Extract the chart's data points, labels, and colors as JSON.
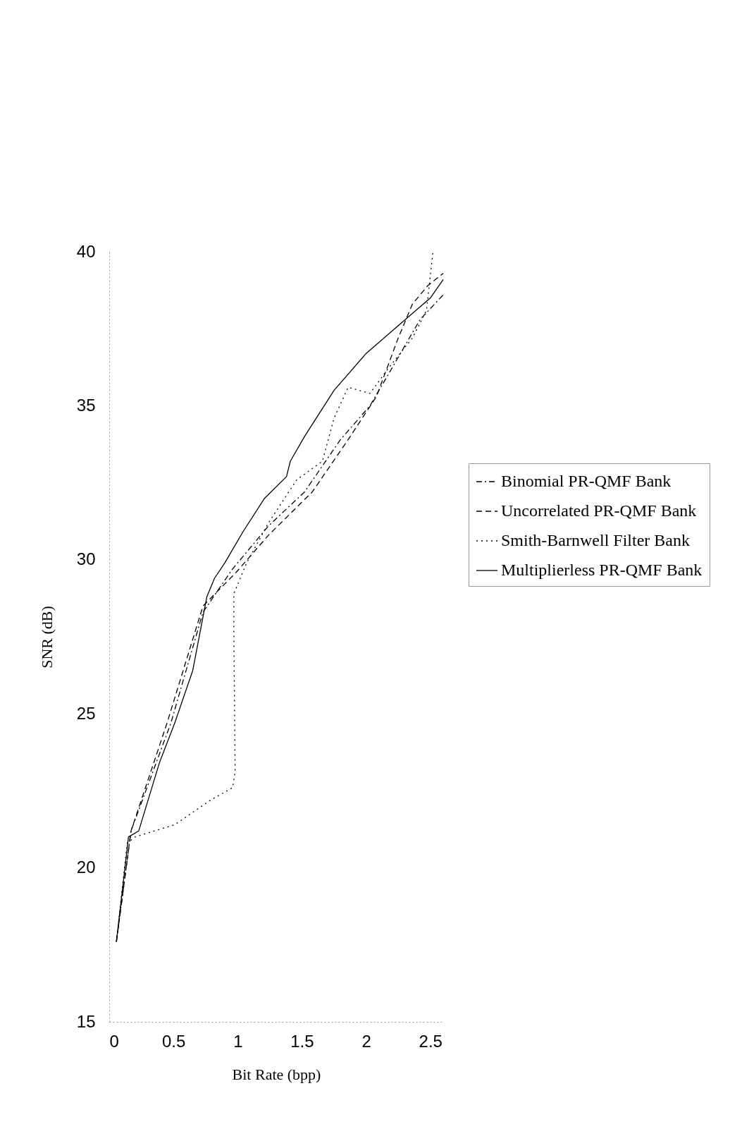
{
  "chart_data": {
    "type": "line",
    "xlabel": "Bit Rate (bpp)",
    "ylabel": "SNR (dB)",
    "xlim": [
      0,
      2.6
    ],
    "ylim": [
      15,
      40
    ],
    "xticks": [
      0,
      0.5,
      1,
      1.5,
      2,
      2.5
    ],
    "yticks": [
      15,
      20,
      25,
      30,
      35,
      40
    ],
    "grid": false,
    "legend": "right",
    "marker": "none",
    "series": [
      {
        "name": "Binomial PR-QMF Bank",
        "color": "#000000",
        "line_style": "dashdot",
        "x": [
          0.056,
          0.17,
          0.48,
          0.73,
          0.96,
          1.24,
          1.52,
          1.8,
          2.03,
          2.17,
          2.42,
          2.6
        ],
        "values": [
          17.6,
          21.2,
          24.7,
          28.3,
          29.7,
          31.1,
          32.2,
          33.9,
          35.0,
          36.0,
          37.8,
          38.6
        ]
      },
      {
        "name": "Uncorrelated PR-QMF Bank",
        "color": "#000000",
        "line_style": "dashed",
        "x": [
          0.056,
          0.17,
          0.45,
          0.73,
          0.99,
          1.24,
          1.58,
          1.86,
          2.08,
          2.25,
          2.36,
          2.48,
          2.6
        ],
        "values": [
          17.6,
          21.2,
          24.7,
          28.5,
          29.6,
          30.8,
          32.2,
          33.9,
          35.3,
          37.2,
          38.3,
          38.9,
          39.3
        ]
      },
      {
        "name": "Smith-Barnwell Filter Bank",
        "color": "#000000",
        "line_style": "dotted",
        "x": [
          0.056,
          0.14,
          0.2,
          0.51,
          0.79,
          0.96,
          0.98,
          0.97,
          0.97,
          1.07,
          1.24,
          1.46,
          1.66,
          1.75,
          1.86,
          2.03,
          2.17,
          2.36,
          2.47,
          2.52
        ],
        "values": [
          17.6,
          20.8,
          21.0,
          21.4,
          22.2,
          22.6,
          23.1,
          27.8,
          28.9,
          29.9,
          31.2,
          32.6,
          33.2,
          34.6,
          35.6,
          35.4,
          36.2,
          37.2,
          38.1,
          40.0
        ]
      },
      {
        "name": "Multiplierless PR-QMF Bank",
        "color": "#000000",
        "line_style": "solid",
        "x": [
          0.056,
          0.15,
          0.23,
          0.39,
          0.51,
          0.65,
          0.76,
          0.82,
          0.9,
          1.04,
          1.21,
          1.38,
          1.41,
          1.52,
          1.75,
          2.0,
          2.25,
          2.5,
          2.6
        ],
        "values": [
          17.6,
          21.0,
          21.2,
          23.4,
          24.7,
          26.4,
          28.8,
          29.4,
          29.9,
          30.9,
          32.0,
          32.7,
          33.2,
          34.0,
          35.5,
          36.7,
          37.6,
          38.5,
          39.1
        ]
      }
    ]
  }
}
